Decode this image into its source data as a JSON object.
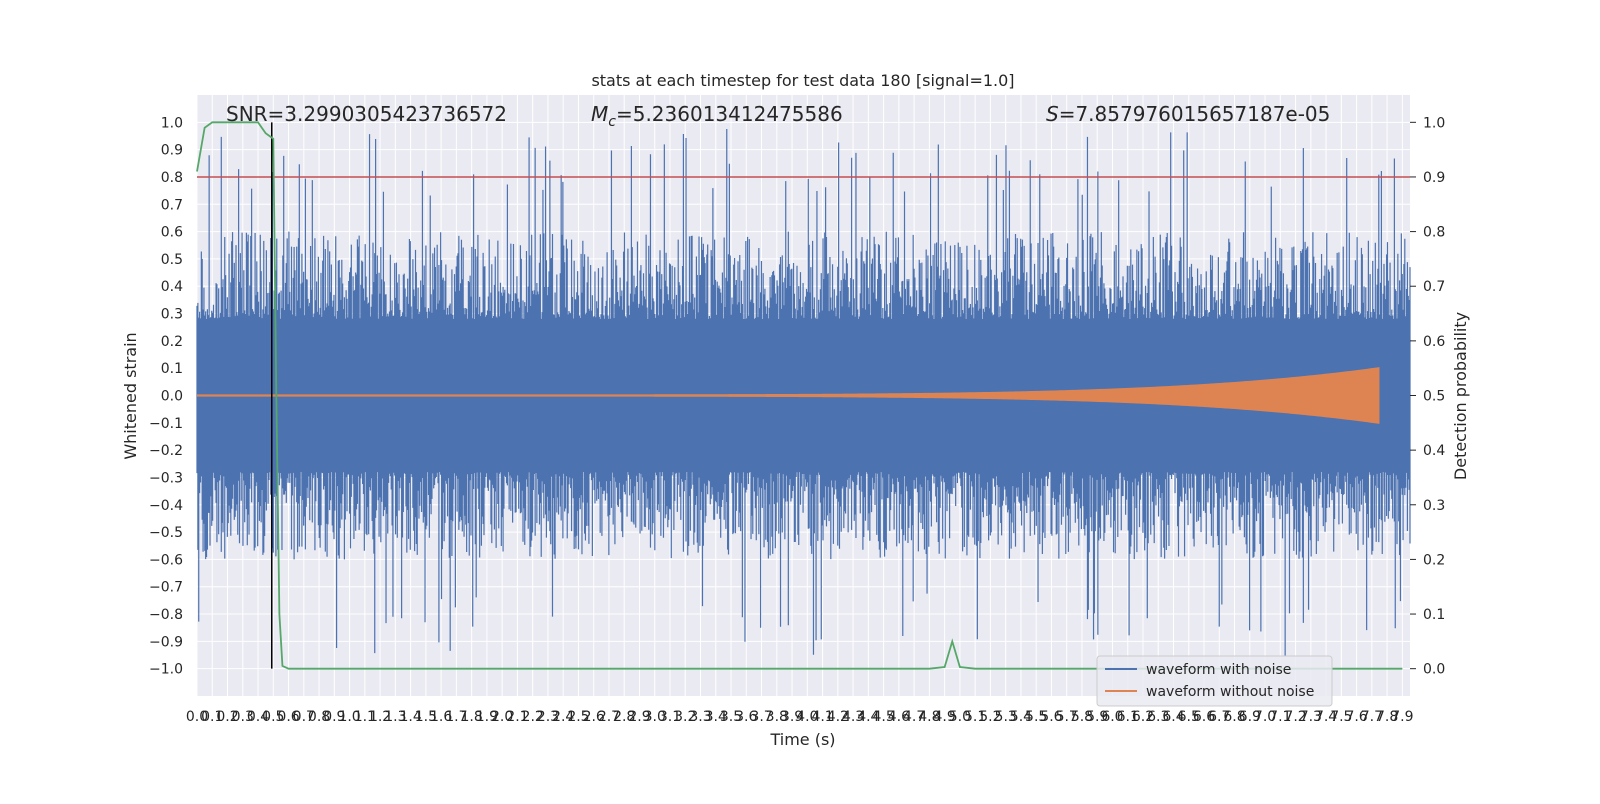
{
  "chart_data": {
    "type": "line",
    "title": "stats at each timestep for test data 180 [signal=1.0]",
    "xlabel": "Time (s)",
    "ylabel": "Whitened strain",
    "y2label": "Detection probability",
    "annotations": {
      "snr": "SNR=3.2990305423736572",
      "mc_symbol": "M",
      "mc_sub": "c",
      "mc_value": "=5.236013412475586",
      "s_symbol": "S",
      "s_value": "=7.857976015657187e-05"
    },
    "xlim": [
      0,
      7.95
    ],
    "ylim": [
      -1.1,
      1.1
    ],
    "y2lim": [
      -0.05,
      1.05
    ],
    "x_ticks": [
      0.0,
      0.1,
      0.2,
      0.3,
      0.4,
      0.5,
      0.6,
      0.7,
      0.8,
      0.9,
      1.0,
      1.1,
      1.2,
      1.3,
      1.4,
      1.5,
      1.6,
      1.7,
      1.8,
      1.9,
      2.0,
      2.1,
      2.2,
      2.3,
      2.4,
      2.5,
      2.6,
      2.7,
      2.8,
      2.9,
      3.0,
      3.1,
      3.2,
      3.3,
      3.4,
      3.5,
      3.6,
      3.7,
      3.8,
      3.9,
      4.0,
      4.1,
      4.2,
      4.3,
      4.4,
      4.5,
      4.6,
      4.7,
      4.8,
      4.9,
      5.0,
      5.1,
      5.2,
      5.3,
      5.4,
      5.5,
      5.6,
      5.7,
      5.8,
      5.9,
      6.0,
      6.1,
      6.2,
      6.3,
      6.4,
      6.5,
      6.6,
      6.7,
      6.8,
      6.9,
      7.0,
      7.1,
      7.2,
      7.3,
      7.4,
      7.5,
      7.6,
      7.7,
      7.8,
      7.9
    ],
    "x_tick_labels": [
      "0.0",
      "0.1",
      "0.2",
      "0.3",
      "0.4",
      "0.5",
      "0.6",
      "0.7",
      "0.8",
      "0.9",
      "1.0",
      "1.1",
      "1.2",
      "1.3",
      "1.4",
      "1.5",
      "1.6",
      "1.7",
      "1.8",
      "1.9",
      "2.0",
      "2.1",
      "2.2",
      "2.3",
      "2.4",
      "2.5",
      "2.6",
      "2.7",
      "2.8",
      "2.9",
      "3.0",
      "3.1",
      "3.2",
      "3.3",
      "3.4",
      "3.5",
      "3.6",
      "3.7",
      "3.8",
      "3.9",
      "4.0",
      "4.1",
      "4.2",
      "4.3",
      "4.4",
      "4.5",
      "4.6",
      "4.7",
      "4.8",
      "4.9",
      "5.0",
      "5.1",
      "5.2",
      "5.3",
      "5.4",
      "5.5",
      "5.6",
      "5.7",
      "5.8",
      "5.9",
      "6.0",
      "6.1",
      "6.2",
      "6.3",
      "6.4",
      "6.5",
      "6.6",
      "6.7",
      "6.8",
      "6.9",
      "7.0",
      "7.1",
      "7.2",
      "7.3",
      "7.4",
      "7.5",
      "7.6",
      "7.7",
      "7.8",
      "7.9"
    ],
    "y_ticks": [
      1.0,
      0.9,
      0.8,
      0.7,
      0.6,
      0.5,
      0.4,
      0.3,
      0.2,
      0.1,
      0.0,
      -0.1,
      -0.2,
      -0.3,
      -0.4,
      -0.5,
      -0.6,
      -0.7,
      -0.8,
      -0.9,
      -1.0
    ],
    "y_tick_labels": [
      "1.0",
      "0.9",
      "0.8",
      "0.7",
      "0.6",
      "0.5",
      "0.4",
      "0.3",
      "0.2",
      "0.1",
      "0.0",
      "−0.1",
      "−0.2",
      "−0.3",
      "−0.4",
      "−0.5",
      "−0.6",
      "−0.7",
      "−0.8",
      "−0.9",
      "−1.0"
    ],
    "y2_ticks": [
      1.0,
      0.9,
      0.8,
      0.7,
      0.6,
      0.5,
      0.4,
      0.3,
      0.2,
      0.1,
      0.0
    ],
    "y2_tick_labels": [
      "1.0",
      "0.9",
      "0.8",
      "0.7",
      "0.6",
      "0.5",
      "0.4",
      "0.3",
      "0.2",
      "0.1",
      "0.0"
    ],
    "grid": true,
    "legend_position": "bottom-right",
    "series": [
      {
        "name": "waveform with noise",
        "color": "#4c72b0",
        "axis": "left",
        "style": "dense noise, |y| roughly 0.3-0.7 with peaks to ~1.0"
      },
      {
        "name": "waveform without noise",
        "color": "#dd8452",
        "axis": "left",
        "style": "chirp, amplitude grows from ~0 to ~0.1 at t≈7.75 then stops"
      },
      {
        "name": "",
        "color": "#55a868",
        "axis": "right",
        "x": [
          0.0,
          0.05,
          0.1,
          0.2,
          0.3,
          0.4,
          0.45,
          0.5,
          0.52,
          0.54,
          0.56,
          0.6,
          1.0,
          2.0,
          3.0,
          4.0,
          4.8,
          4.9,
          4.95,
          5.0,
          5.1,
          6.0,
          7.0,
          7.9
        ],
        "values": [
          0.91,
          0.99,
          1.0,
          1.0,
          1.0,
          1.0,
          0.98,
          0.97,
          0.5,
          0.1,
          0.005,
          0.0,
          0.0,
          0.0,
          0.0,
          0.0,
          0.0,
          0.003,
          0.05,
          0.003,
          0.0,
          0.0,
          0.0,
          0.0
        ]
      }
    ],
    "reference_lines": [
      {
        "orientation": "horizontal",
        "axis": "left",
        "value": 0.8,
        "color": "#c44e52"
      },
      {
        "orientation": "vertical",
        "value": 0.49,
        "ymin": -1.0,
        "ymax": 1.0,
        "color": "#000000"
      }
    ],
    "chirp_end_time": 7.75,
    "chirp_peak_amplitude": 0.1
  }
}
